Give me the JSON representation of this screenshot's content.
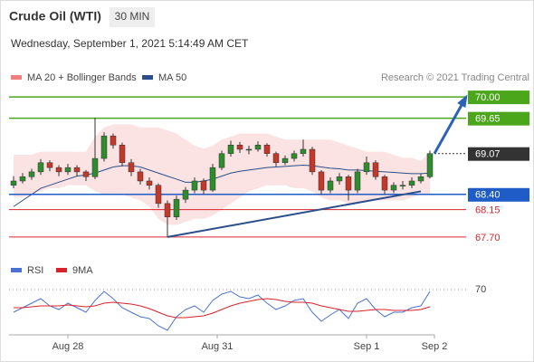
{
  "chart_data": {
    "type": "candlestick",
    "title": "Crude Oil (WTI)",
    "timeframe": "30 MIN",
    "subtitle": "Wednesday, September 1, 2021 5:14:49 AM CET",
    "legend": [
      {
        "name": "MA 20 + Bollinger Bands",
        "color": "#f08080"
      },
      {
        "name": "MA 50",
        "color": "#2b4f8a"
      }
    ],
    "credit": "Research © 2021 Trading Central",
    "ylim": [
      67.55,
      70.15
    ],
    "candles": [
      [
        68.55,
        68.7,
        68.5,
        68.62
      ],
      [
        68.62,
        68.75,
        68.58,
        68.69
      ],
      [
        68.69,
        68.82,
        68.64,
        68.77
      ],
      [
        68.77,
        68.98,
        68.72,
        68.92
      ],
      [
        68.92,
        68.96,
        68.78,
        68.84
      ],
      [
        68.84,
        68.88,
        68.7,
        68.77
      ],
      [
        68.77,
        68.9,
        68.72,
        68.84
      ],
      [
        68.84,
        68.88,
        68.7,
        68.77
      ],
      [
        68.77,
        68.8,
        68.62,
        68.69
      ],
      [
        68.69,
        69.66,
        68.65,
        68.99
      ],
      [
        68.99,
        69.42,
        68.94,
        69.36
      ],
      [
        69.36,
        69.4,
        69.15,
        69.21
      ],
      [
        69.21,
        69.25,
        68.86,
        68.92
      ],
      [
        68.92,
        68.98,
        68.7,
        68.77
      ],
      [
        68.77,
        68.82,
        68.56,
        68.62
      ],
      [
        68.62,
        68.68,
        68.48,
        68.55
      ],
      [
        68.55,
        68.58,
        68.18,
        68.25
      ],
      [
        68.25,
        68.3,
        67.7,
        68.03
      ],
      [
        68.03,
        68.38,
        67.98,
        68.32
      ],
      [
        68.32,
        68.52,
        68.26,
        68.47
      ],
      [
        68.47,
        68.68,
        68.42,
        68.62
      ],
      [
        68.62,
        68.66,
        68.4,
        68.47
      ],
      [
        68.47,
        68.9,
        68.44,
        68.84
      ],
      [
        68.84,
        69.12,
        68.8,
        69.07
      ],
      [
        69.07,
        69.28,
        69.02,
        69.21
      ],
      [
        69.21,
        69.26,
        69.08,
        69.14
      ],
      [
        69.14,
        69.2,
        69.06,
        69.14
      ],
      [
        69.14,
        69.27,
        69.1,
        69.21
      ],
      [
        69.21,
        69.24,
        69.02,
        69.07
      ],
      [
        69.07,
        69.1,
        68.86,
        68.92
      ],
      [
        68.92,
        69.04,
        68.88,
        68.99
      ],
      [
        68.99,
        69.12,
        68.94,
        69.07
      ],
      [
        69.07,
        69.3,
        69.02,
        69.14
      ],
      [
        69.14,
        69.18,
        68.72,
        68.77
      ],
      [
        68.77,
        68.8,
        68.4,
        68.47
      ],
      [
        68.47,
        68.68,
        68.42,
        68.62
      ],
      [
        68.62,
        68.75,
        68.56,
        68.69
      ],
      [
        68.69,
        68.72,
        68.3,
        68.47
      ],
      [
        68.47,
        68.82,
        68.42,
        68.77
      ],
      [
        68.77,
        69.02,
        68.72,
        68.92
      ],
      [
        68.92,
        68.96,
        68.64,
        68.69
      ],
      [
        68.69,
        68.72,
        68.4,
        68.47
      ],
      [
        68.47,
        68.6,
        68.42,
        68.55
      ],
      [
        68.55,
        68.62,
        68.48,
        68.55
      ],
      [
        68.55,
        68.68,
        68.5,
        68.62
      ],
      [
        68.62,
        68.74,
        68.58,
        68.69
      ],
      [
        68.69,
        69.12,
        68.66,
        69.07
      ]
    ],
    "bb_upper": [
      69.05,
      69.05,
      69.05,
      69.1,
      69.1,
      69.1,
      69.1,
      69.1,
      69.1,
      69.35,
      69.5,
      69.55,
      69.55,
      69.55,
      69.5,
      69.5,
      69.5,
      69.45,
      69.4,
      69.3,
      69.2,
      69.15,
      69.2,
      69.3,
      69.35,
      69.4,
      69.4,
      69.4,
      69.4,
      69.35,
      69.3,
      69.3,
      69.3,
      69.3,
      69.3,
      69.3,
      69.25,
      69.2,
      69.15,
      69.1,
      69.1,
      69.1,
      69.05,
      69.0,
      69.0,
      68.95,
      69.1
    ],
    "bb_lower": [
      68.35,
      68.35,
      68.4,
      68.45,
      68.5,
      68.5,
      68.55,
      68.55,
      68.55,
      68.45,
      68.4,
      68.4,
      68.4,
      68.35,
      68.3,
      68.2,
      68.0,
      67.9,
      67.9,
      67.95,
      68.0,
      68.0,
      68.05,
      68.15,
      68.25,
      68.35,
      68.45,
      68.5,
      68.55,
      68.55,
      68.55,
      68.5,
      68.5,
      68.45,
      68.35,
      68.3,
      68.3,
      68.25,
      68.25,
      68.3,
      68.3,
      68.3,
      68.3,
      68.3,
      68.35,
      68.4,
      68.4
    ],
    "ma50": [
      68.2,
      68.3,
      68.4,
      68.5,
      68.55,
      68.6,
      68.65,
      68.7,
      68.72,
      68.75,
      68.8,
      68.85,
      68.87,
      68.87,
      68.85,
      68.8,
      68.75,
      68.7,
      68.65,
      68.6,
      68.6,
      68.62,
      68.65,
      68.7,
      68.75,
      68.78,
      68.8,
      68.82,
      68.84,
      68.85,
      68.86,
      68.87,
      68.88,
      68.87,
      68.85,
      68.83,
      68.82,
      68.8,
      68.8,
      68.79,
      68.78,
      68.77,
      68.76,
      68.75,
      68.74,
      68.74,
      68.75
    ],
    "levels": [
      {
        "value": 70.0,
        "label": "70.00",
        "color": "#4ca61c",
        "boxed": true
      },
      {
        "value": 69.65,
        "label": "69.65",
        "color": "#4ca61c",
        "boxed": true
      },
      {
        "value": 69.07,
        "label": "69.07",
        "color": "#333333",
        "boxed": true,
        "dotted": true
      },
      {
        "value": 68.4,
        "label": "68.40",
        "color": "#1f5cc8",
        "boxed": true
      },
      {
        "value": 68.15,
        "label": "68.15",
        "color": "#d9232a",
        "boxed": false
      },
      {
        "value": 67.7,
        "label": "67.70",
        "color": "#d9232a",
        "boxed": false
      }
    ],
    "trendline": {
      "from": [
        17,
        67.7
      ],
      "to": [
        45,
        68.45
      ],
      "color": "#2b4f8a"
    },
    "arrow": {
      "from": [
        46.5,
        69.07
      ],
      "to": [
        50,
        70.0
      ],
      "color": "#2a62b8"
    },
    "x_labels": [
      {
        "label": "Aug 28",
        "at": 6
      },
      {
        "label": "Aug 31",
        "at": 22.5
      },
      {
        "label": "Sep 1",
        "at": 39
      },
      {
        "label": "Sep 2",
        "at": 46.5
      }
    ],
    "rsi": {
      "legend": [
        {
          "name": "RSI",
          "color": "#4a72d4"
        },
        {
          "name": "9MA",
          "color": "#d9232a"
        }
      ],
      "ylim": [
        20,
        80
      ],
      "yticks": [
        70
      ],
      "values": [
        45,
        50,
        55,
        60,
        52,
        48,
        55,
        50,
        45,
        58,
        68,
        60,
        50,
        45,
        40,
        38,
        30,
        25,
        40,
        48,
        52,
        45,
        58,
        65,
        68,
        62,
        60,
        64,
        55,
        48,
        52,
        58,
        60,
        45,
        35,
        42,
        48,
        38,
        55,
        60,
        48,
        40,
        45,
        45,
        50,
        52,
        68
      ],
      "ma": [
        50,
        50,
        51,
        52,
        52,
        52,
        53,
        52,
        51,
        52,
        55,
        56,
        55,
        54,
        52,
        49,
        45,
        41,
        39,
        39,
        40,
        41,
        44,
        48,
        52,
        55,
        57,
        59,
        60,
        59,
        57,
        56,
        56,
        55,
        52,
        50,
        48,
        46,
        46,
        47,
        48,
        48,
        47,
        47,
        47,
        48,
        51
      ]
    }
  }
}
